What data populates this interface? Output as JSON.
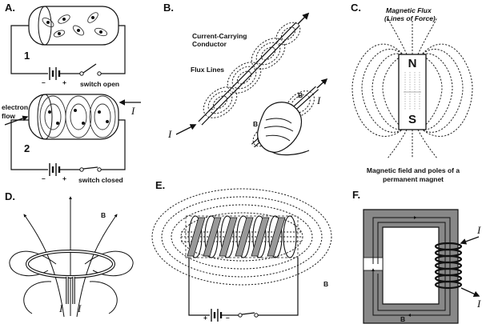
{
  "panels": {
    "a": {
      "label": "A.",
      "circuit1": "1",
      "circuit2": "2",
      "minus1": "–",
      "plus1": "+",
      "minus2": "–",
      "plus2": "+",
      "switch_open": "switch open",
      "switch_closed": "switch closed",
      "electron_flow_1": "electron",
      "electron_flow_2": "flow",
      "current": "I"
    },
    "b": {
      "label": "B.",
      "conductor_1": "Current-Carrying",
      "conductor_2": "Conductor",
      "flux_lines": "Flux Lines",
      "minus": "–",
      "current_in": "I",
      "current_out": "I",
      "field_b1": "B",
      "field_b2": "B"
    },
    "c": {
      "label": "C.",
      "flux_1": "Magnetic Flux",
      "flux_2": "(Lines of Force)",
      "north": "N",
      "south": "S",
      "caption_1": "Magnetic field and poles of a",
      "caption_2": "permanent magnet"
    },
    "d": {
      "label": "D.",
      "field": "B",
      "current_1": "I",
      "current_2": "I"
    },
    "e": {
      "label": "E.",
      "field": "B",
      "plus": "+",
      "minus": "–"
    },
    "f": {
      "label": "F.",
      "current_top": "I",
      "current_bottom": "I",
      "field": "B"
    }
  }
}
